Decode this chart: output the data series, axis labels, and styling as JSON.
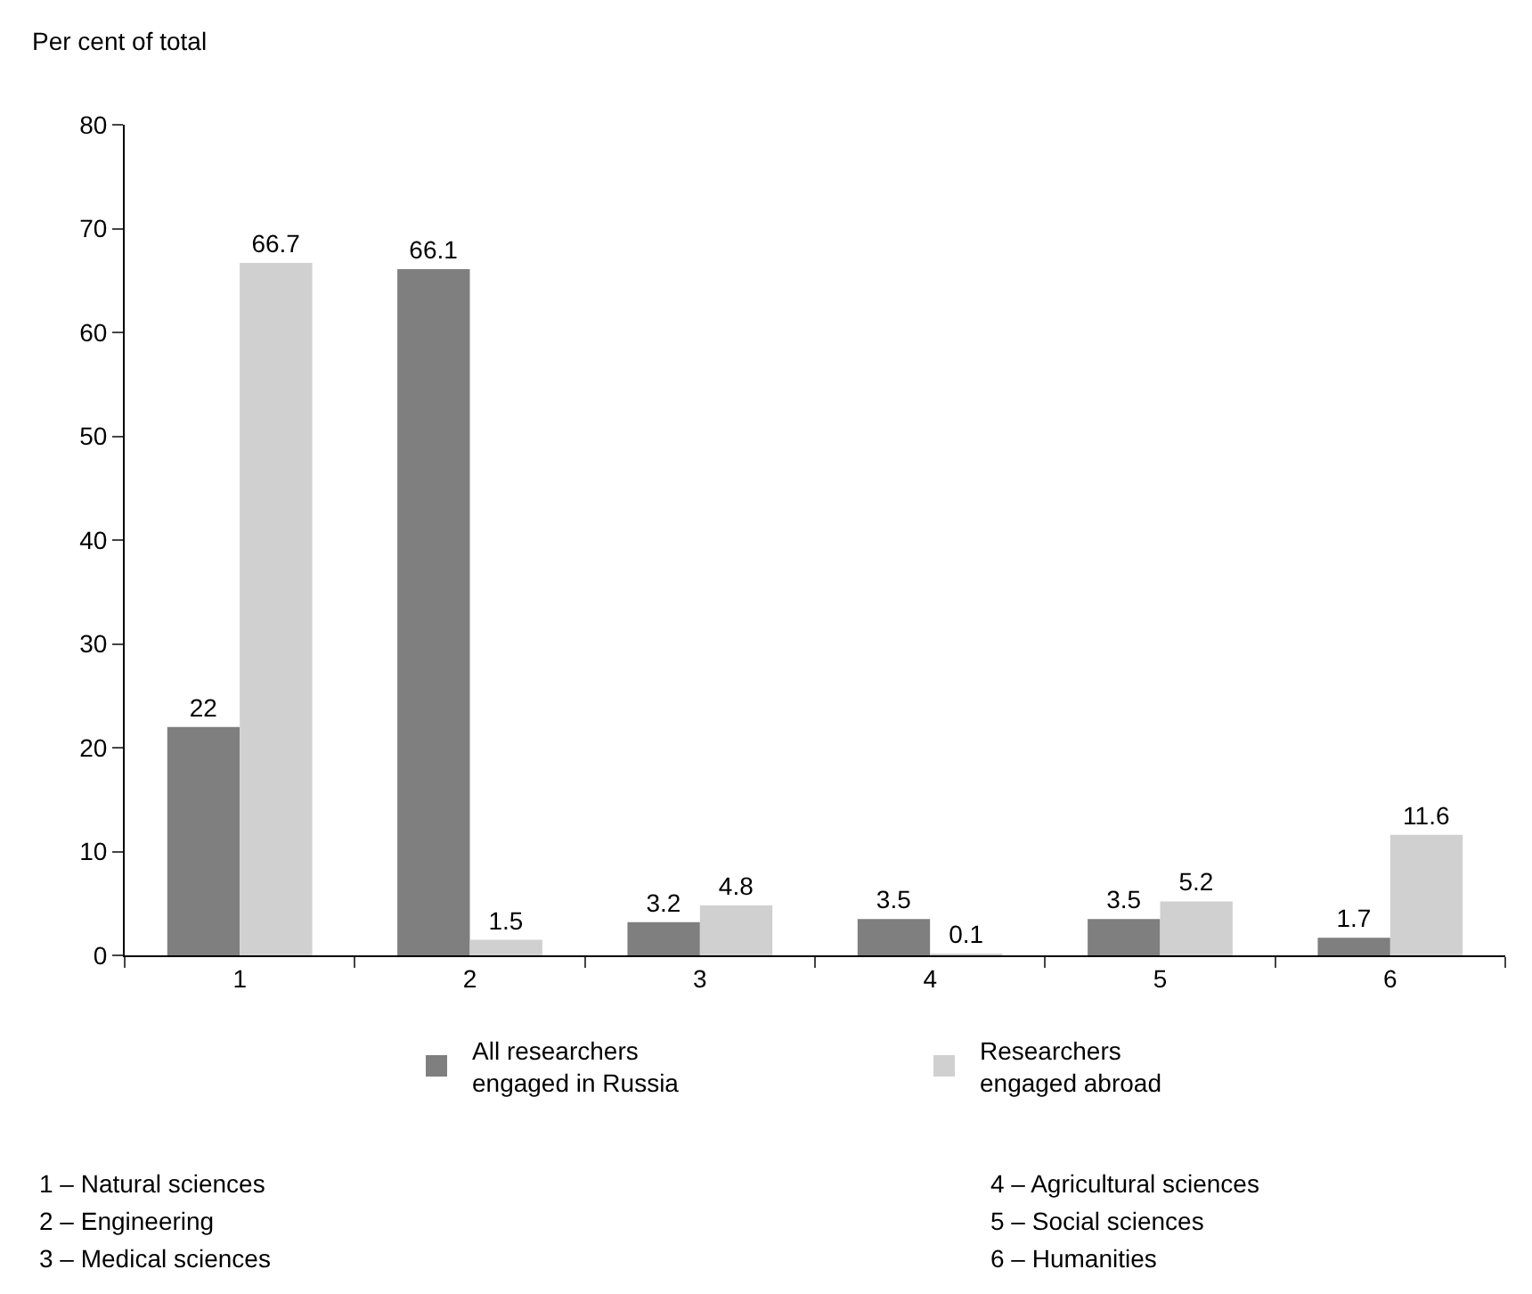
{
  "chart_data": {
    "type": "bar",
    "ylabel": "Per cent of total",
    "categories": [
      "1",
      "2",
      "3",
      "4",
      "5",
      "6"
    ],
    "series": [
      {
        "name": "All researchers engaged in Russia",
        "color": "#7f7f7f",
        "values": [
          22,
          66.1,
          3.2,
          3.5,
          3.5,
          1.7
        ]
      },
      {
        "name": "Researchers engaged abroad",
        "color": "#d0d0d0",
        "values": [
          66.7,
          1.5,
          4.8,
          0.1,
          5.2,
          11.6
        ]
      }
    ],
    "ylim": [
      0,
      80
    ],
    "yticks": [
      0,
      10,
      20,
      30,
      40,
      50,
      60,
      70,
      80
    ],
    "legend": "bottom",
    "data_labels": true,
    "annotations": [
      "1 – Natural sciences",
      "2 – Engineering",
      "3 – Medical sciences",
      "4 – Agricultural sciences",
      "5 – Social sciences",
      "6 – Humanities"
    ]
  }
}
